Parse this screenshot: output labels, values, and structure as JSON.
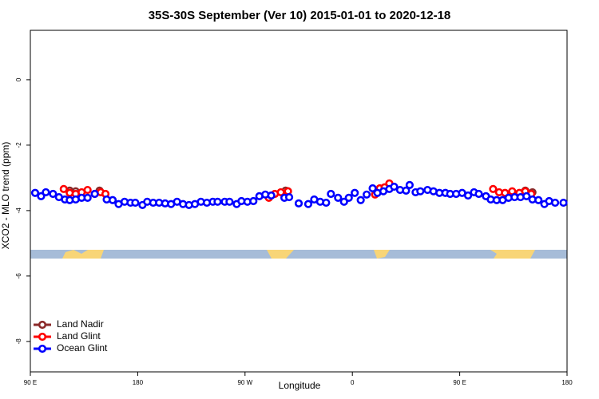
{
  "chart_data": {
    "type": "scatter",
    "title": "35S-30S September (Ver 10)   2015-01-01 to 2020-12-18",
    "x_label": "Longitude",
    "y_label": "XCO2 - MLO trend (ppm)",
    "xlim": [
      90,
      540
    ],
    "ylim": [
      -8.93,
      1.51
    ],
    "xticks": [
      {
        "value": 90,
        "label": "90 E"
      },
      180,
      {
        "value": 270,
        "label": "90 W"
      },
      {
        "value": 360,
        "label": "0"
      },
      {
        "value": 450,
        "label": "90 E"
      },
      {
        "value": 540,
        "label": "180"
      }
    ],
    "yticks": [
      0,
      -2,
      -4,
      -6,
      -8
    ],
    "grid": false,
    "legend": "bottom-left",
    "series": [
      {
        "name": "Land Nadir",
        "color": "#8b2a2a",
        "x": [
          123,
          128,
          148,
          304,
          306,
          505,
          511
        ],
        "values": [
          -3.39,
          -3.41,
          -3.39,
          -3.39,
          -3.41,
          -3.39,
          -3.44
        ]
      },
      {
        "name": "Land Glint",
        "color": "#ff0000",
        "x": [
          118,
          123,
          128,
          133,
          138,
          144,
          149,
          153,
          290,
          295,
          300,
          306,
          379,
          383,
          387,
          391,
          478,
          483,
          488,
          494,
          500,
          505,
          510
        ],
        "values": [
          -3.34,
          -3.46,
          -3.49,
          -3.44,
          -3.37,
          -3.49,
          -3.44,
          -3.49,
          -3.61,
          -3.49,
          -3.44,
          -3.41,
          -3.51,
          -3.32,
          -3.29,
          -3.17,
          -3.34,
          -3.44,
          -3.46,
          -3.41,
          -3.46,
          -3.41,
          -3.49
        ]
      },
      {
        "name": "Ocean Glint",
        "color": "#0000ff",
        "x": [
          94,
          99,
          103,
          109,
          114,
          119,
          123,
          128,
          133,
          138,
          144,
          154,
          159,
          164,
          169,
          174,
          178,
          184,
          188,
          193,
          198,
          203,
          208,
          213,
          218,
          223,
          228,
          233,
          238,
          243,
          247,
          253,
          257,
          263,
          267,
          272,
          277,
          282,
          287,
          292,
          303,
          307,
          315,
          323,
          328,
          333,
          338,
          342,
          348,
          353,
          357,
          362,
          367,
          372,
          377,
          381,
          386,
          391,
          395,
          400,
          405,
          408,
          413,
          417,
          423,
          428,
          433,
          438,
          442,
          447,
          452,
          457,
          462,
          466,
          472,
          476,
          481,
          486,
          491,
          496,
          501,
          506,
          511,
          516,
          521,
          525,
          530,
          537
        ],
        "values": [
          -3.46,
          -3.56,
          -3.44,
          -3.49,
          -3.59,
          -3.66,
          -3.68,
          -3.66,
          -3.61,
          -3.61,
          -3.49,
          -3.66,
          -3.68,
          -3.8,
          -3.73,
          -3.76,
          -3.76,
          -3.83,
          -3.73,
          -3.76,
          -3.76,
          -3.78,
          -3.8,
          -3.73,
          -3.8,
          -3.83,
          -3.8,
          -3.73,
          -3.76,
          -3.73,
          -3.73,
          -3.73,
          -3.73,
          -3.8,
          -3.71,
          -3.73,
          -3.71,
          -3.56,
          -3.51,
          -3.54,
          -3.61,
          -3.59,
          -3.78,
          -3.8,
          -3.66,
          -3.73,
          -3.76,
          -3.49,
          -3.61,
          -3.73,
          -3.61,
          -3.46,
          -3.68,
          -3.51,
          -3.32,
          -3.46,
          -3.41,
          -3.34,
          -3.27,
          -3.37,
          -3.39,
          -3.22,
          -3.44,
          -3.41,
          -3.37,
          -3.41,
          -3.46,
          -3.46,
          -3.49,
          -3.49,
          -3.46,
          -3.54,
          -3.44,
          -3.49,
          -3.56,
          -3.66,
          -3.68,
          -3.68,
          -3.61,
          -3.59,
          -3.59,
          -3.56,
          -3.66,
          -3.68,
          -3.8,
          -3.71,
          -3.76,
          -3.76
        ]
      }
    ]
  }
}
